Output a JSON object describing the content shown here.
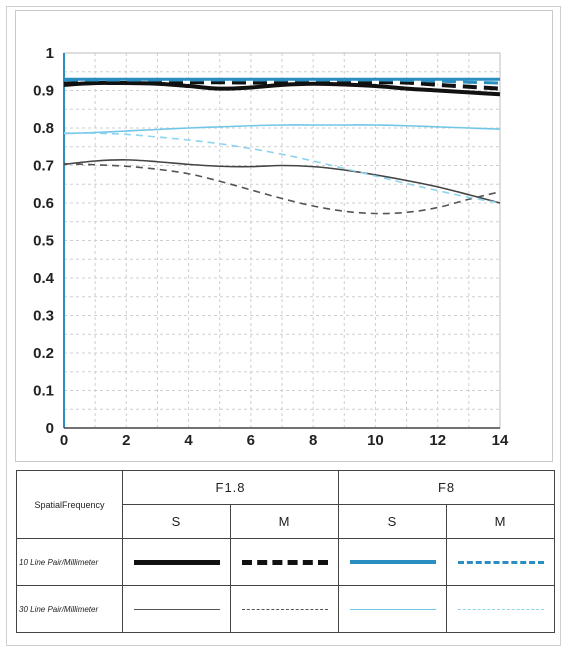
{
  "chart_data": {
    "type": "line",
    "x_ticks": [
      "0",
      "2",
      "4",
      "6",
      "8",
      "10",
      "12",
      "14"
    ],
    "y_ticks": [
      "0",
      "0.1",
      "0.2",
      "0.3",
      "0.4",
      "0.5",
      "0.6",
      "0.7",
      "0.8",
      "0.9",
      "1"
    ],
    "xlim": [
      0,
      14
    ],
    "ylim": [
      0,
      1
    ],
    "grid": true,
    "x": [
      0,
      1,
      2,
      3,
      4,
      5,
      6,
      7,
      8,
      9,
      10,
      11,
      12,
      13,
      14
    ],
    "series": [
      {
        "name": "F1.8 10 Line Pair S",
        "color": "#111111",
        "style": "solid",
        "weight": "thick",
        "values": [
          0.915,
          0.92,
          0.92,
          0.918,
          0.912,
          0.905,
          0.908,
          0.915,
          0.918,
          0.916,
          0.912,
          0.905,
          0.9,
          0.895,
          0.89
        ]
      },
      {
        "name": "F1.8 10 Line Pair M",
        "color": "#111111",
        "style": "dashed",
        "weight": "thick",
        "values": [
          0.918,
          0.92,
          0.92,
          0.921,
          0.922,
          0.922,
          0.921,
          0.92,
          0.92,
          0.921,
          0.922,
          0.921,
          0.915,
          0.91,
          0.905
        ]
      },
      {
        "name": "F8 10 Line Pair S",
        "color": "#2a8fc0",
        "style": "solid",
        "weight": "thick",
        "values": [
          0.93,
          0.93,
          0.93,
          0.93,
          0.93,
          0.93,
          0.93,
          0.93,
          0.93,
          0.93,
          0.93,
          0.93,
          0.93,
          0.93,
          0.93
        ]
      },
      {
        "name": "F8 10 Line Pair M",
        "color": "#2a8fc0",
        "style": "dashed",
        "weight": "thick",
        "values": [
          0.928,
          0.928,
          0.928,
          0.928,
          0.928,
          0.928,
          0.928,
          0.928,
          0.928,
          0.928,
          0.928,
          0.927,
          0.925,
          0.922,
          0.92
        ]
      },
      {
        "name": "F1.8 30 Line Pair S",
        "color": "#444444",
        "style": "solid",
        "weight": "thin",
        "values": [
          0.703,
          0.712,
          0.715,
          0.71,
          0.703,
          0.698,
          0.697,
          0.7,
          0.697,
          0.688,
          0.675,
          0.66,
          0.643,
          0.622,
          0.6
        ]
      },
      {
        "name": "F1.8 30 Line Pair M",
        "color": "#555555",
        "style": "dashed",
        "weight": "thin",
        "values": [
          0.705,
          0.702,
          0.698,
          0.69,
          0.678,
          0.658,
          0.635,
          0.612,
          0.592,
          0.578,
          0.572,
          0.575,
          0.588,
          0.61,
          0.63
        ]
      },
      {
        "name": "F8 30 Line Pair S",
        "color": "#6fc6e6",
        "style": "solid",
        "weight": "thin",
        "values": [
          0.785,
          0.788,
          0.792,
          0.796,
          0.8,
          0.803,
          0.806,
          0.808,
          0.808,
          0.808,
          0.808,
          0.806,
          0.803,
          0.8,
          0.797
        ]
      },
      {
        "name": "F8 30 Line Pair M",
        "color": "#8fd3ee",
        "style": "dashed",
        "weight": "thin",
        "values": [
          0.787,
          0.786,
          0.783,
          0.776,
          0.768,
          0.758,
          0.745,
          0.73,
          0.712,
          0.692,
          0.672,
          0.652,
          0.633,
          0.615,
          0.6
        ]
      }
    ]
  },
  "legend": {
    "spatial_label": "SpatialFrequency",
    "groups": [
      "F1.8",
      "F8"
    ],
    "subheaders": [
      "S",
      "M",
      "S",
      "M"
    ],
    "rows": [
      "10 Line Pair/Millimeter",
      "30 Line Pair/Millimeter"
    ]
  }
}
